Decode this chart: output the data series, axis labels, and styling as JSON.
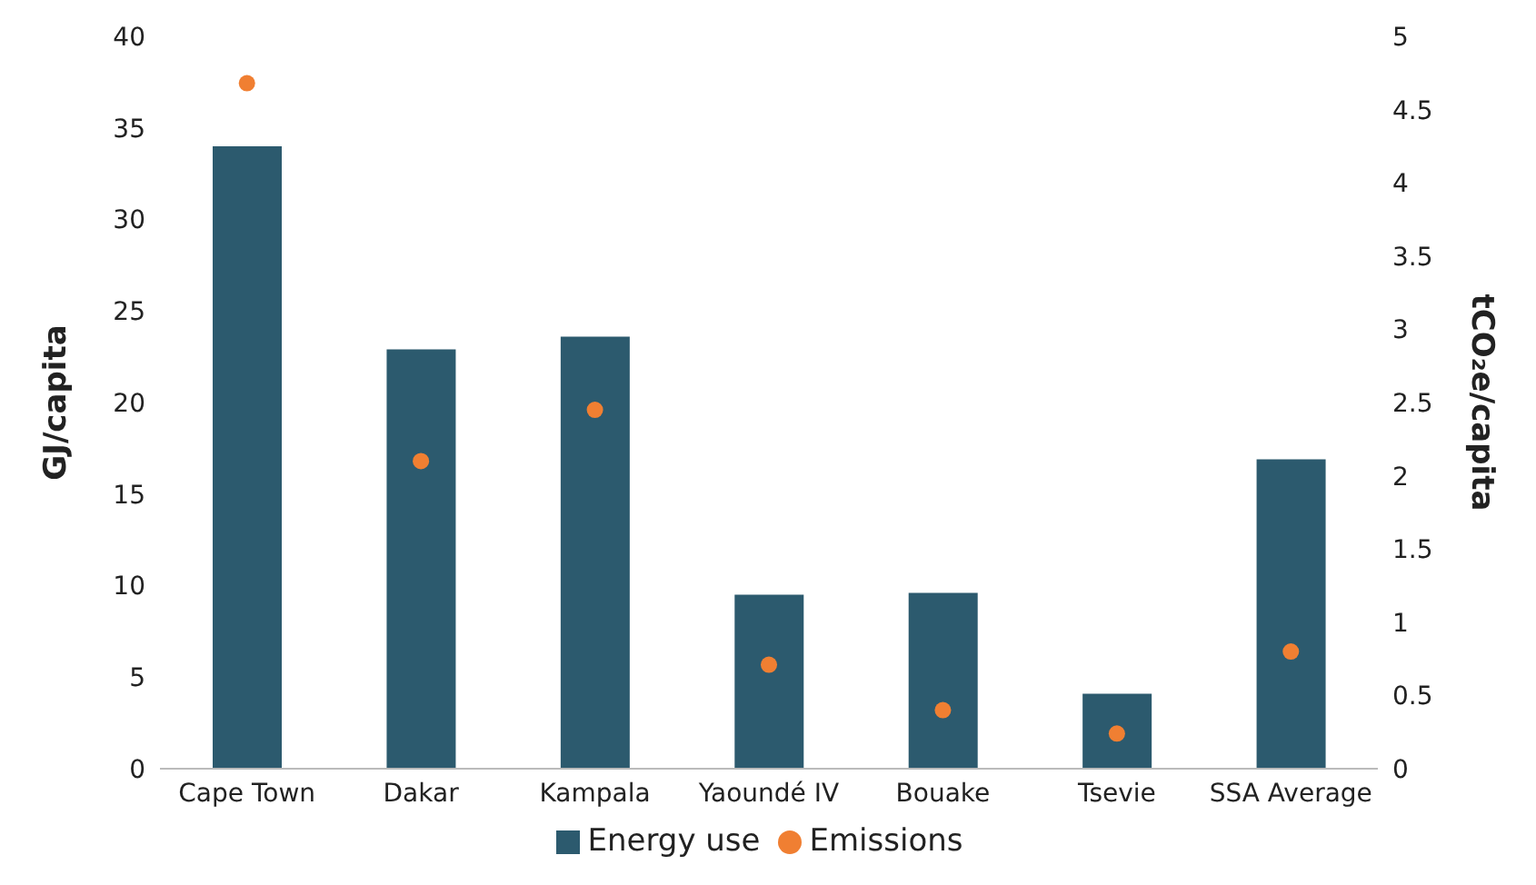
{
  "chart_data": {
    "type": "bar",
    "categories": [
      "Cape Town",
      "Dakar",
      "Kampala",
      "Yaoundé IV",
      "Bouake",
      "Tsevie",
      "SSA Average"
    ],
    "series": [
      {
        "name": "Energy use",
        "color": "#2c5a6e",
        "values": [
          34,
          22.9,
          23.6,
          9.5,
          9.6,
          4.1,
          16.9
        ]
      },
      {
        "name": "Emissions",
        "type": "scatter",
        "axis": "y2",
        "color": "#f07f32",
        "marker": "circle",
        "values": [
          4.68,
          2.1,
          2.45,
          0.71,
          0.4,
          0.24,
          0.8
        ]
      }
    ],
    "ylabel": "GJ/capita",
    "y2label": "tCO₂e/capita",
    "ylim": [
      0,
      40
    ],
    "yticks": [
      0,
      5,
      10,
      15,
      20,
      25,
      30,
      35,
      40
    ],
    "y2lim": [
      0,
      5
    ],
    "y2ticks": [
      0,
      0.5,
      1,
      1.5,
      2,
      2.5,
      3,
      3.5,
      4,
      4.5,
      5
    ],
    "grid": false,
    "legend": "bottom"
  }
}
